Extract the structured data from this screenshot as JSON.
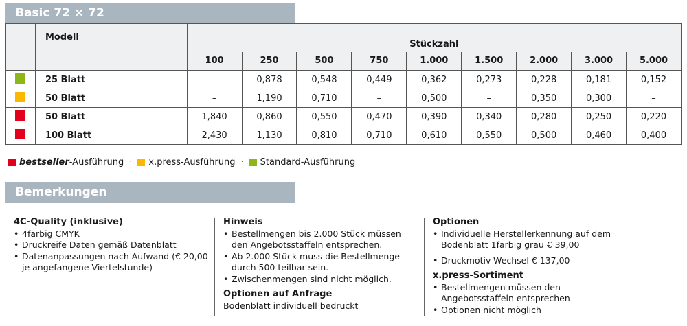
{
  "title": "Basic 72 × 72",
  "table": {
    "model_header": "Modell",
    "qty_header": "Stückzahl",
    "quantities": [
      "100",
      "250",
      "500",
      "750",
      "1.000",
      "1.500",
      "2.000",
      "3.000",
      "5.000"
    ],
    "rows": [
      {
        "color": "#8db61b",
        "model": "25 Blatt",
        "values": [
          "–",
          "0,878",
          "0,548",
          "0,449",
          "0,362",
          "0,273",
          "0,228",
          "0,181",
          "0,152"
        ]
      },
      {
        "color": "#fbb800",
        "model": "50 Blatt",
        "values": [
          "–",
          "1,190",
          "0,710",
          "–",
          "0,500",
          "–",
          "0,350",
          "0,300",
          "–"
        ]
      },
      {
        "color": "#e3001b",
        "model": "50 Blatt",
        "values": [
          "1,840",
          "0,860",
          "0,550",
          "0,470",
          "0,390",
          "0,340",
          "0,280",
          "0,250",
          "0,220"
        ]
      },
      {
        "color": "#e3001b",
        "model": "100 Blatt",
        "values": [
          "2,430",
          "1,130",
          "0,810",
          "0,710",
          "0,610",
          "0,550",
          "0,500",
          "0,460",
          "0,400"
        ]
      }
    ]
  },
  "legend": {
    "bestseller": "bestseller",
    "bestseller_suffix": "-Ausführung",
    "xpress": "x.press-Ausführung",
    "standard": "Standard-Ausführung",
    "sep": "·"
  },
  "remarks": {
    "title": "Bemerkungen",
    "col1": {
      "heading": "4C-Quality (inklusive)",
      "items": [
        "4farbig CMYK",
        "Druckreife Daten gemäß Datenblatt",
        "Datenanpassungen nach Aufwand (€ 20,00 je angefangene Viertelstunde)"
      ]
    },
    "col2": {
      "heading": "Hinweis",
      "items": [
        "Bestellmengen bis 2.000 Stück müssen den Angebotsstaffeln entsprechen.",
        "Ab 2.000 Stück muss die Bestellmenge durch 500 teilbar sein.",
        "Zwischenmengen sind nicht möglich."
      ],
      "heading2": "Optionen auf Anfrage",
      "text2": "Bodenblatt individuell bedruckt"
    },
    "col3": {
      "heading": "Optionen",
      "items": [
        "Individuelle Herstellerkennung auf dem Bodenblatt 1farbig grau € 39,00",
        "Druckmotiv-Wechsel € 137,00"
      ],
      "heading2": "x.press-Sortiment",
      "items2": [
        "Bestellmengen müssen den Angebotsstaffeln entsprechen",
        "Optionen nicht möglich"
      ]
    }
  }
}
